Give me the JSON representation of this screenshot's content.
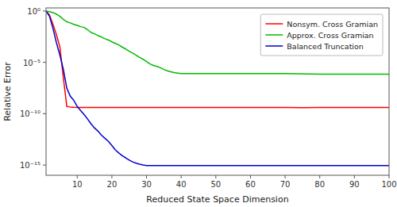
{
  "chart_data": {
    "type": "line",
    "x_label": "Reduced State Space Dimension",
    "y_label": "Relative Error",
    "log": "y",
    "grid": false,
    "legend": "upper right",
    "xlim": [
      1,
      100
    ],
    "ylim": [
      1e-16,
      2.0
    ],
    "xticks": [
      10,
      20,
      30,
      40,
      50,
      60,
      70,
      80,
      90,
      100
    ],
    "yticks": [
      {
        "value": 1e-15,
        "label": "10⁻¹⁵"
      },
      {
        "value": 1e-10,
        "label": "10⁻¹⁰"
      },
      {
        "value": 1e-05,
        "label": "10⁻⁵"
      },
      {
        "value": 1,
        "label": "10⁰"
      }
    ],
    "series": [
      {
        "name": "Nonsym. Cross Gramian",
        "color": "#FF0000",
        "x": [
          1,
          2,
          3,
          4,
          5,
          6,
          7,
          8,
          9,
          10,
          15,
          20,
          30,
          40,
          50,
          60,
          70,
          75,
          80,
          90,
          100
        ],
        "values": [
          1.0,
          0.4,
          0.05,
          0.005,
          0.0003,
          3e-07,
          5e-10,
          4.5e-10,
          4.2e-10,
          4e-10,
          4e-10,
          4e-10,
          4e-10,
          4e-10,
          4e-10,
          4e-10,
          4e-10,
          3.8e-10,
          4e-10,
          4e-10,
          4e-10
        ]
      },
      {
        "name": "Approx. Cross Gramian",
        "color": "#00BB00",
        "x": [
          1,
          2,
          3,
          4,
          5,
          6,
          7,
          8,
          9,
          10,
          11,
          12,
          13,
          14,
          15,
          16,
          17,
          18,
          19,
          20,
          21,
          22,
          23,
          24,
          25,
          26,
          27,
          28,
          29,
          30,
          31,
          32,
          33,
          34,
          35,
          36,
          37,
          38,
          39,
          40,
          50,
          60,
          70,
          80,
          90,
          100
        ],
        "values": [
          1.0,
          0.85,
          0.7,
          0.5,
          0.3,
          0.15,
          0.09,
          0.07,
          0.05,
          0.04,
          0.03,
          0.025,
          0.015,
          0.008,
          0.006,
          0.004,
          0.003,
          0.002,
          0.0015,
          0.001,
          0.0007,
          0.0005,
          0.0003,
          0.0002,
          0.00012,
          8e-05,
          5e-05,
          3e-05,
          2e-05,
          1.2e-05,
          7e-06,
          5e-06,
          4e-06,
          3e-06,
          2e-06,
          1.5e-06,
          1.2e-06,
          1e-06,
          9e-07,
          8e-07,
          8e-07,
          8e-07,
          8e-07,
          7e-07,
          7e-07,
          7e-07
        ]
      },
      {
        "name": "Balanced Truncation",
        "color": "#0000CC",
        "x": [
          1,
          2,
          3,
          4,
          5,
          6,
          7,
          8,
          9,
          10,
          11,
          12,
          13,
          14,
          15,
          16,
          17,
          18,
          19,
          20,
          21,
          22,
          23,
          24,
          25,
          26,
          27,
          28,
          29,
          30,
          40,
          50,
          60,
          70,
          80,
          90,
          100
        ],
        "values": [
          1.0,
          0.3,
          0.02,
          0.0008,
          5e-05,
          2e-06,
          3e-08,
          5e-09,
          2e-09,
          5e-10,
          2e-10,
          8e-11,
          3e-11,
          1e-11,
          4e-12,
          2e-12,
          8e-13,
          4e-13,
          2e-13,
          8e-14,
          3e-14,
          1.5e-14,
          8e-15,
          5e-15,
          3e-15,
          2e-15,
          1.5e-15,
          1.2e-15,
          1e-15,
          9e-16,
          9e-16,
          9e-16,
          9e-16,
          9e-16,
          9e-16,
          9e-16,
          9e-16
        ]
      }
    ]
  }
}
